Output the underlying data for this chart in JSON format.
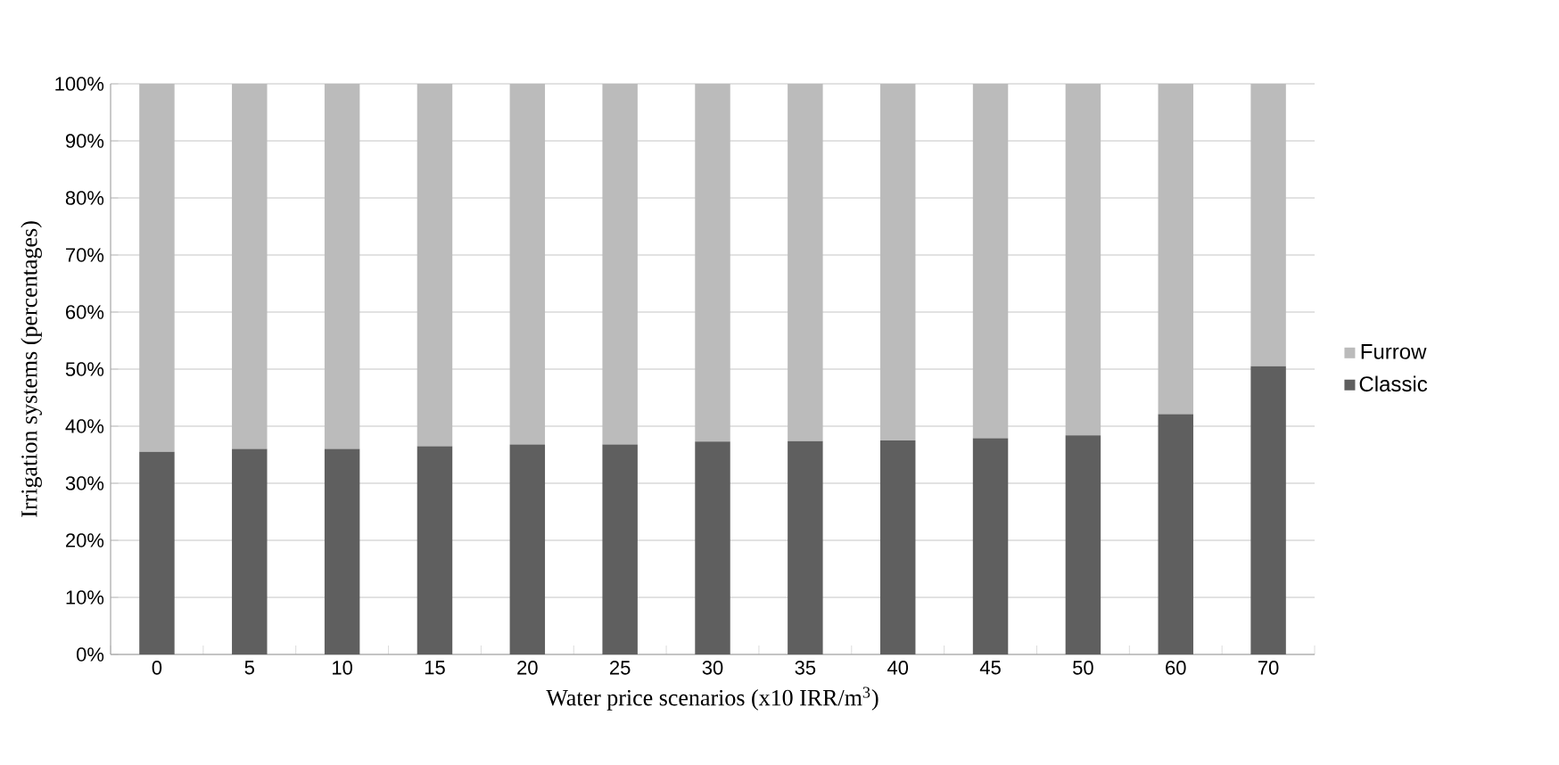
{
  "chart_data": {
    "type": "bar",
    "stacked": true,
    "ylabel": "Irrigation systems (percentages)",
    "xlabel": "Water price scenarios (x10 IRR/m$^{3}$)",
    "categories": [
      "0",
      "5",
      "10",
      "15",
      "20",
      "25",
      "30",
      "35",
      "40",
      "45",
      "50",
      "60",
      "70"
    ],
    "series": [
      {
        "name": "Classic",
        "color": "#5f5f5f",
        "values": [
          35.5,
          36.0,
          36.0,
          36.5,
          36.8,
          36.8,
          37.3,
          37.4,
          37.5,
          37.9,
          38.4,
          42.1,
          50.5
        ]
      },
      {
        "name": "Furrow",
        "color": "#bbbbbb",
        "values": [
          64.5,
          64.0,
          64.0,
          63.5,
          63.2,
          63.2,
          62.7,
          62.6,
          62.5,
          62.1,
          61.6,
          57.9,
          49.5
        ]
      }
    ],
    "ylim": [
      0,
      100
    ],
    "yticks": [
      {
        "value": 0,
        "label": "0%"
      },
      {
        "value": 10,
        "label": "10%"
      },
      {
        "value": 20,
        "label": "20%"
      },
      {
        "value": 30,
        "label": "30%"
      },
      {
        "value": 40,
        "label": "40%"
      },
      {
        "value": 50,
        "label": "50%"
      },
      {
        "value": 60,
        "label": "60%"
      },
      {
        "value": 70,
        "label": "70%"
      },
      {
        "value": 80,
        "label": "80%"
      },
      {
        "value": 90,
        "label": "90%"
      },
      {
        "value": 100,
        "label": "100%"
      }
    ],
    "grid": "y",
    "legend": "right"
  }
}
